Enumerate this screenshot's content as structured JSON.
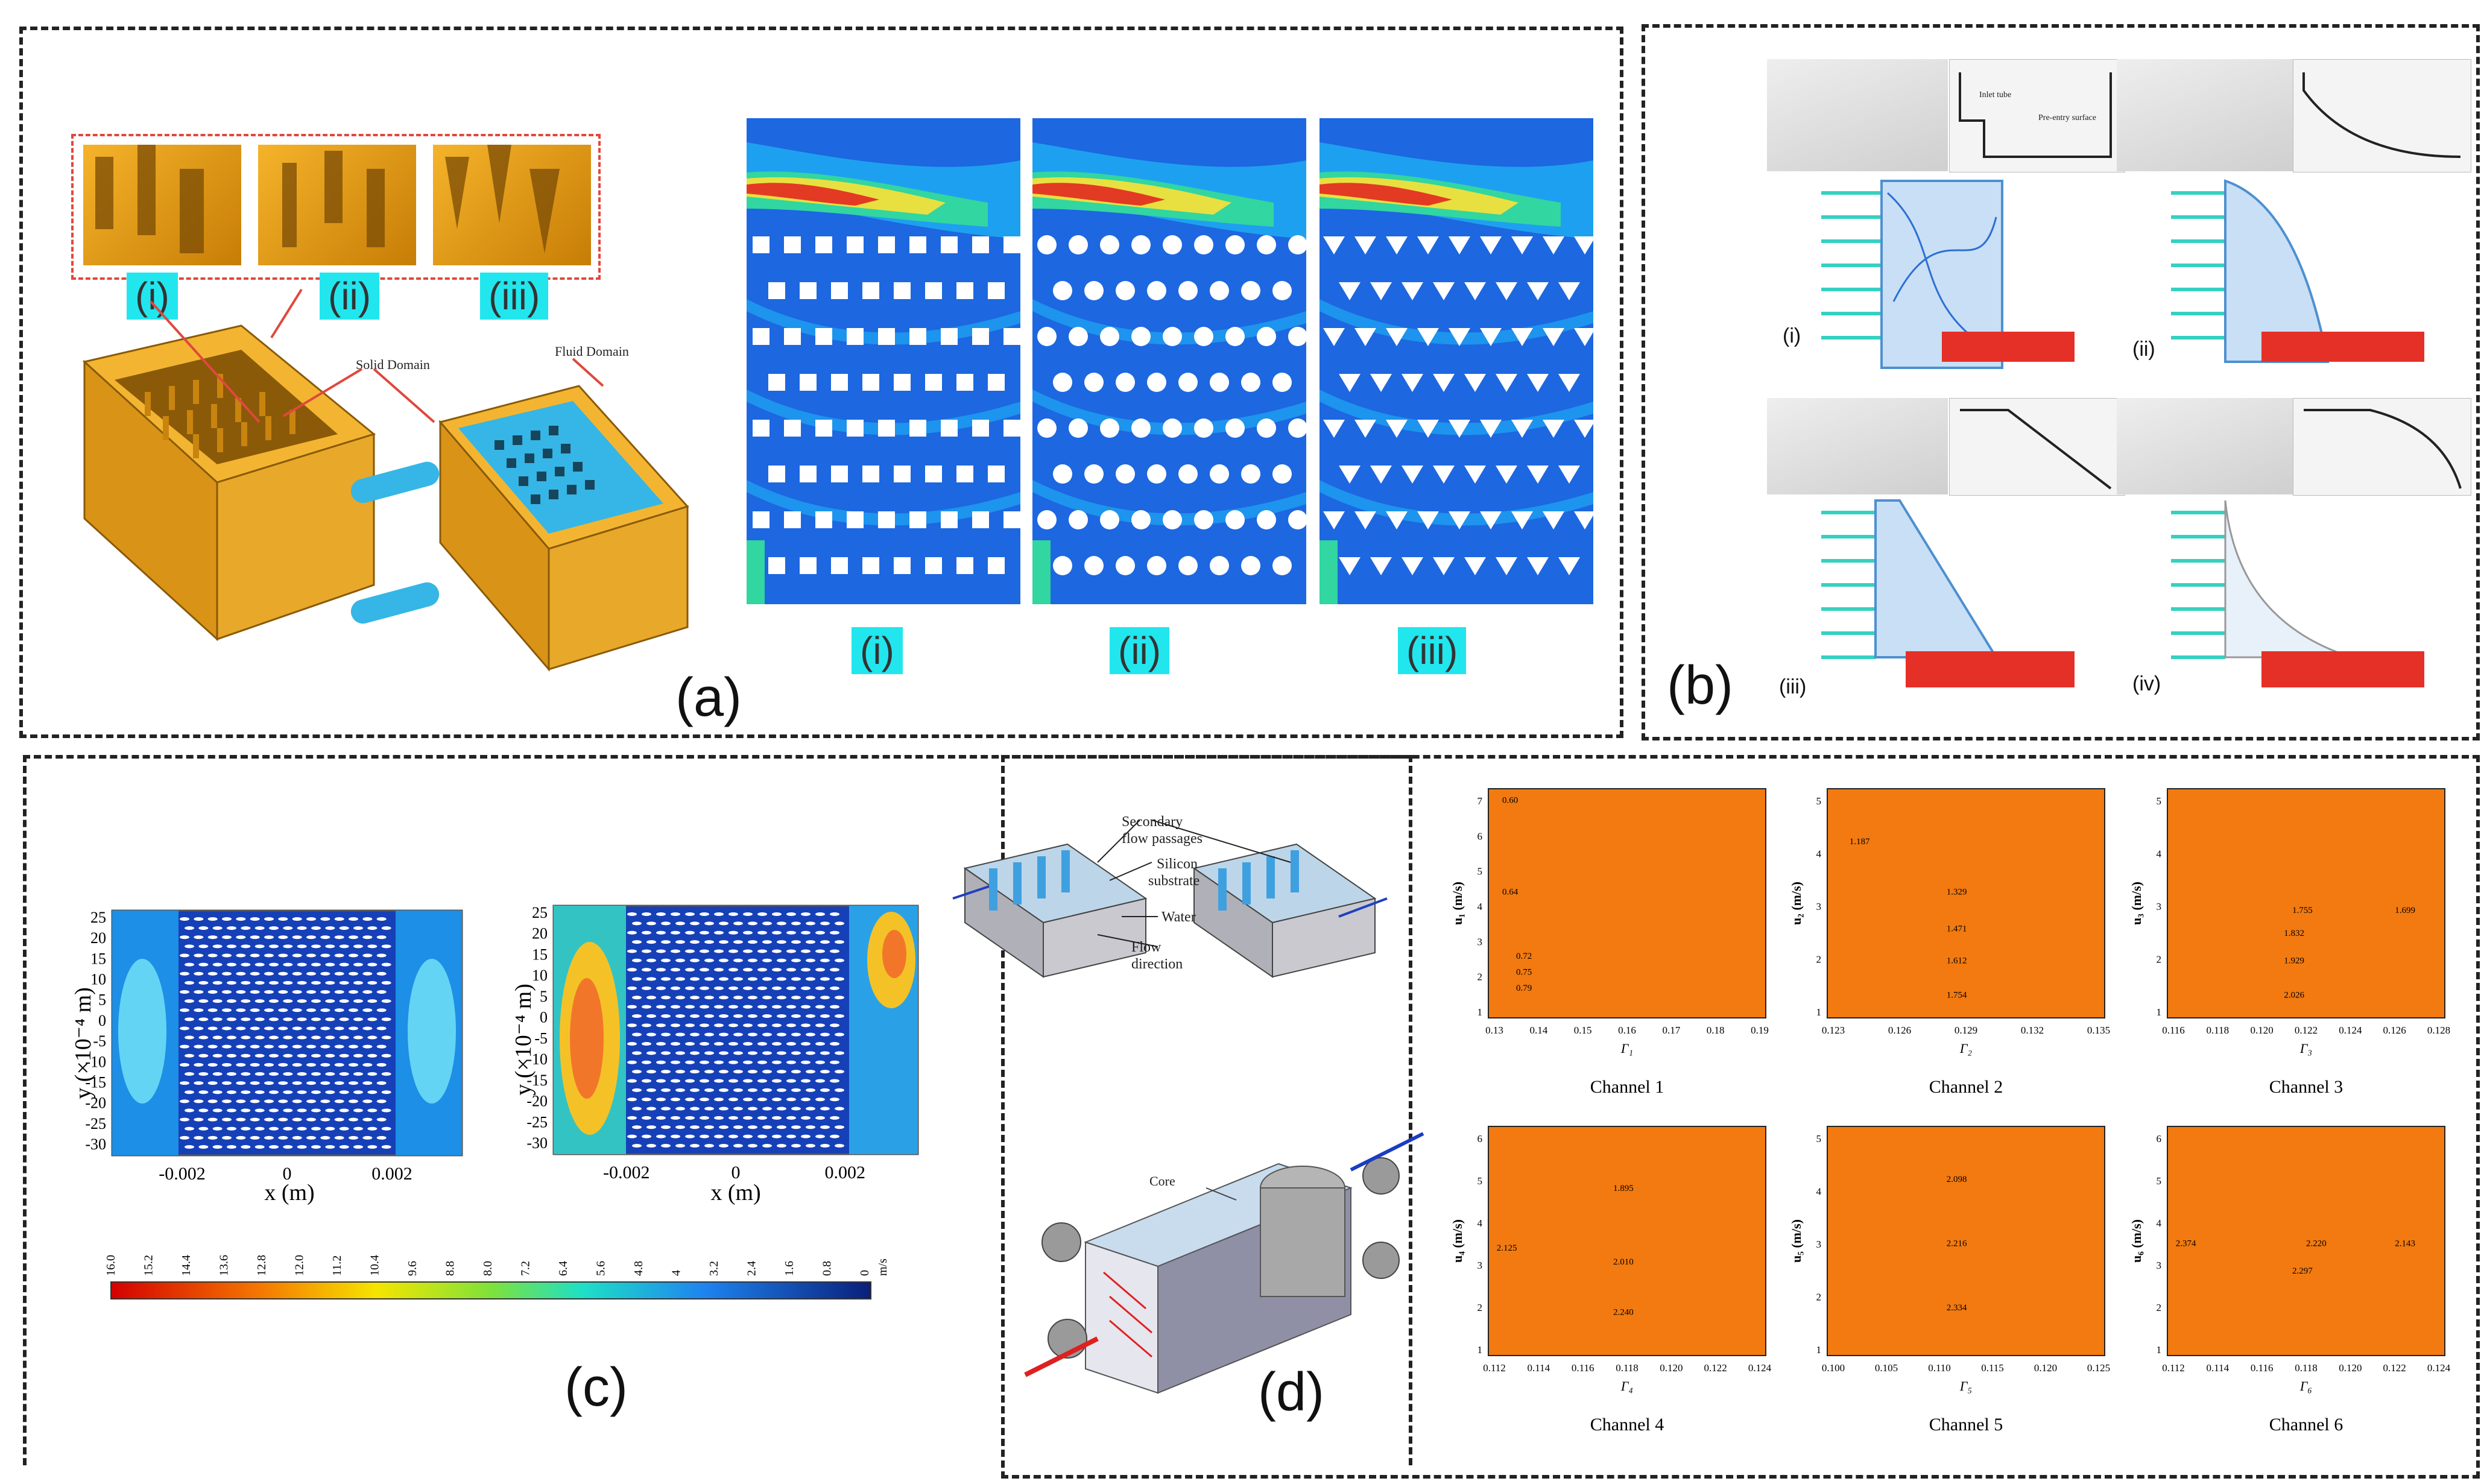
{
  "panels": {
    "a": {
      "label": "(a)",
      "tags": [
        "(i)",
        "(ii)",
        "(iii)"
      ],
      "solid_domain": "Solid Domain",
      "fluid_domain": "Fluid Domain",
      "contour_tags": [
        "(i)",
        "(ii)",
        "(iii)"
      ]
    },
    "b": {
      "label": "(b)",
      "sub_labels": [
        "(i)",
        "(ii)",
        "(iii)",
        "(iv)"
      ],
      "inlet_tube": "Inlet tube",
      "pre_entry": "Pre-entry surface"
    },
    "c": {
      "label": "(c)",
      "plot_left": {
        "xlabel": "x (m)",
        "ylabel": "y (×10⁻⁴ m)",
        "xticks": [
          "-0.002",
          "0",
          "0.002"
        ],
        "yticks": [
          "25",
          "20",
          "15",
          "10",
          "5",
          "0",
          "-5",
          "-10",
          "-15",
          "-20",
          "-25",
          "-30"
        ]
      },
      "plot_right": {
        "xlabel": "x (m)",
        "ylabel": "y (×10⁻⁴ m)",
        "xticks": [
          "-0.002",
          "0",
          "0.002"
        ],
        "yticks": [
          "25",
          "20",
          "15",
          "10",
          "5",
          "0",
          "-5",
          "-10",
          "-15",
          "-20",
          "-25",
          "-30"
        ]
      },
      "colorbar": {
        "ticks": [
          "16.0",
          "15.2",
          "14.4",
          "13.6",
          "12.8",
          "12.0",
          "11.2",
          "10.4",
          "9.6",
          "8.8",
          "8.0",
          "7.2",
          "6.4",
          "5.6",
          "4.8",
          "4",
          "3.2",
          "2.4",
          "1.6",
          "0.8",
          "0"
        ],
        "unit": "m/s"
      },
      "schematic": {
        "secondary": "Secondary",
        "flow_passages": "flow passages",
        "silicon": "Silicon",
        "substrate": "substrate",
        "water": "Water",
        "flow": "Flow",
        "direction": "direction"
      }
    },
    "d": {
      "label": "(d)",
      "core": "Core"
    }
  },
  "chart_data": [
    {
      "type": "heatmap",
      "title": "Channel 1",
      "xlabel": "Γ₁",
      "ylabel": "u₁ (m/s)",
      "xticks": [
        "0.13",
        "0.14",
        "0.15",
        "0.16",
        "0.17",
        "0.18",
        "0.19"
      ],
      "yticks": [
        "1",
        "2",
        "3",
        "4",
        "5",
        "6",
        "7"
      ],
      "contour_labels": [
        "0.60",
        "0.64",
        "0.72",
        "0.75",
        "0.79"
      ]
    },
    {
      "type": "heatmap",
      "title": "Channel 2",
      "xlabel": "Γ₂",
      "ylabel": "u₂ (m/s)",
      "xticks": [
        "0.123",
        "0.126",
        "0.129",
        "0.132",
        "0.135"
      ],
      "yticks": [
        "1",
        "2",
        "3",
        "4",
        "5"
      ],
      "contour_labels": [
        "1.187",
        "1.329",
        "1.471",
        "1.612",
        "1.754"
      ]
    },
    {
      "type": "heatmap",
      "title": "Channel 3",
      "xlabel": "Γ₃",
      "ylabel": "u₃ (m/s)",
      "xticks": [
        "0.116",
        "0.118",
        "0.120",
        "0.122",
        "0.124",
        "0.126",
        "0.128"
      ],
      "yticks": [
        "1",
        "2",
        "3",
        "4",
        "5"
      ],
      "contour_labels": [
        "1.755",
        "1.699",
        "1.832",
        "1.929",
        "2.026"
      ]
    },
    {
      "type": "heatmap",
      "title": "Channel 4",
      "xlabel": "Γ₄",
      "ylabel": "u₄ (m/s)",
      "xticks": [
        "0.112",
        "0.114",
        "0.116",
        "0.118",
        "0.120",
        "0.122",
        "0.124"
      ],
      "yticks": [
        "1",
        "2",
        "3",
        "4",
        "5",
        "6"
      ],
      "contour_labels": [
        "1.895",
        "2.125",
        "2.010",
        "2.240"
      ]
    },
    {
      "type": "heatmap",
      "title": "Channel 5",
      "xlabel": "Γ₅",
      "ylabel": "u₅ (m/s)",
      "xticks": [
        "0.100",
        "0.105",
        "0.110",
        "0.115",
        "0.120",
        "0.125"
      ],
      "yticks": [
        "1",
        "2",
        "3",
        "4",
        "5"
      ],
      "contour_labels": [
        "2.098",
        "2.216",
        "2.334"
      ]
    },
    {
      "type": "heatmap",
      "title": "Channel 6",
      "xlabel": "Γ₆",
      "ylabel": "u₆ (m/s)",
      "xticks": [
        "0.112",
        "0.114",
        "0.116",
        "0.118",
        "0.120",
        "0.122",
        "0.124"
      ],
      "yticks": [
        "1",
        "2",
        "3",
        "4",
        "5",
        "6"
      ],
      "contour_labels": [
        "2.374",
        "2.220",
        "2.143",
        "2.297"
      ]
    }
  ]
}
